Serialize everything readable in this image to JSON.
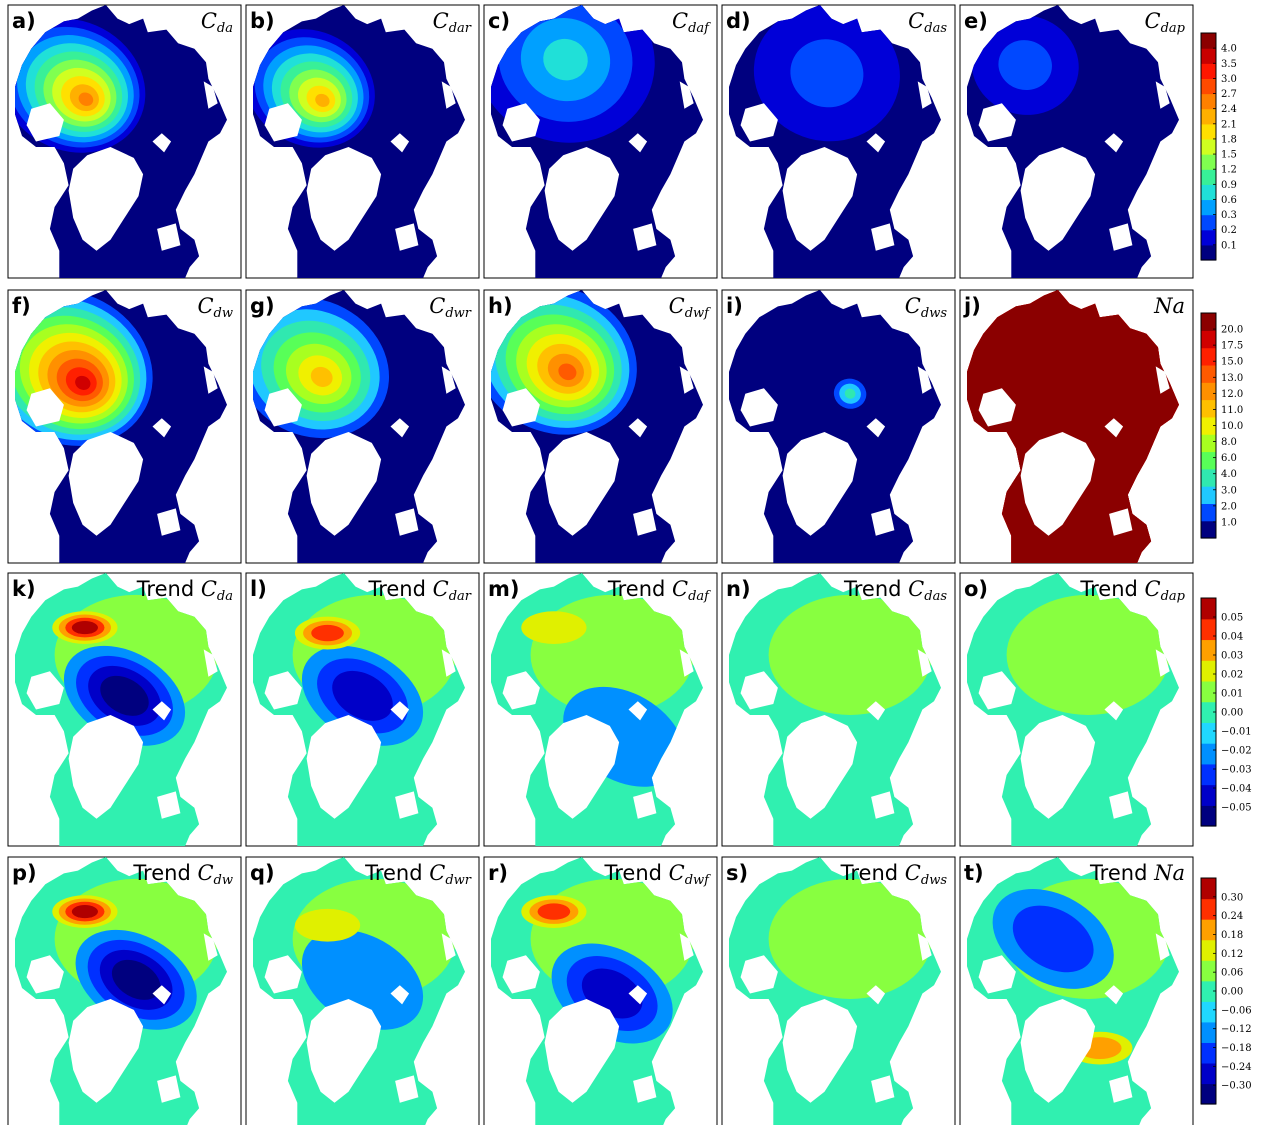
{
  "chart_data": {
    "type": "heatmap",
    "layout": "4 rows x 5 columns of Arctic map panels",
    "map": "Arctic Ocean model grid, polar projection; Greenland and land masks shown white, ocean filled by color",
    "rows": [
      {
        "colorbar": {
          "ticks": [
            "0.1",
            "0.2",
            "0.3",
            "0.6",
            "0.9",
            "1.2",
            "1.5",
            "1.8",
            "2.1",
            "2.4",
            "2.7",
            "3.0",
            "3.5",
            "4.0"
          ],
          "colors": [
            "#00007f",
            "#0000d8",
            "#0048ff",
            "#00a0ff",
            "#20e0d8",
            "#38f098",
            "#80ff50",
            "#d0ff20",
            "#ffe000",
            "#ffb000",
            "#ff8000",
            "#ff4a00",
            "#ff1600",
            "#c80000",
            "#8b0000"
          ]
        },
        "panels": [
          {
            "letter": "a)",
            "prefix": "",
            "symbol": "C",
            "subscript": "da",
            "pattern": {
              "max": 10,
              "center": [
                0.27,
                0.29
              ],
              "spread": 0.43,
              "ridge": true
            }
          },
          {
            "letter": "b)",
            "prefix": "",
            "symbol": "C",
            "subscript": "dar",
            "pattern": {
              "max": 9,
              "center": [
                0.27,
                0.3
              ],
              "spread": 0.38,
              "ridge": true
            }
          },
          {
            "letter": "c)",
            "prefix": "",
            "symbol": "C",
            "subscript": "daf",
            "pattern": {
              "max": 4,
              "center": [
                0.35,
                0.2
              ],
              "spread": 0.55,
              "ridge": false
            }
          },
          {
            "letter": "d)",
            "prefix": "",
            "symbol": "C",
            "subscript": "das",
            "pattern": {
              "max": 2,
              "center": [
                0.45,
                0.25
              ],
              "spread": 0.45,
              "ridge": false
            }
          },
          {
            "letter": "e)",
            "prefix": "",
            "symbol": "C",
            "subscript": "dap",
            "pattern": {
              "max": 2,
              "center": [
                0.28,
                0.22
              ],
              "spread": 0.33,
              "ridge": false
            }
          }
        ]
      },
      {
        "colorbar": {
          "ticks": [
            "1.0",
            "2.0",
            "3.0",
            "4.0",
            "6.0",
            "8.0",
            "10.0",
            "11.0",
            "12.0",
            "13.0",
            "15.0",
            "17.5",
            "20.0"
          ],
          "colors": [
            "#00007f",
            "#0048ff",
            "#20c8ff",
            "#30e8b0",
            "#58ff58",
            "#a8ff20",
            "#f0f000",
            "#ffc000",
            "#ff9000",
            "#ff5a00",
            "#ff2000",
            "#d00000",
            "#8b0000"
          ]
        },
        "panels": [
          {
            "letter": "f)",
            "prefix": "",
            "symbol": "C",
            "subscript": "dw",
            "pattern": {
              "max": 11,
              "center": [
                0.25,
                0.28
              ],
              "spread": 0.5,
              "ridge": true
            }
          },
          {
            "letter": "g)",
            "prefix": "",
            "symbol": "C",
            "subscript": "dwr",
            "pattern": {
              "max": 7,
              "center": [
                0.28,
                0.28
              ],
              "spread": 0.45,
              "ridge": true
            }
          },
          {
            "letter": "h)",
            "prefix": "",
            "symbol": "C",
            "subscript": "dwf",
            "pattern": {
              "max": 9,
              "center": [
                0.3,
                0.25
              ],
              "spread": 0.48,
              "ridge": true
            }
          },
          {
            "letter": "i)",
            "prefix": "",
            "symbol": "C",
            "subscript": "dws",
            "pattern": {
              "max": 3,
              "center": [
                0.55,
                0.38
              ],
              "spread": 0.1,
              "ridge": false
            }
          },
          {
            "letter": "j)",
            "prefix": "",
            "symbol": "Na",
            "subscript": "",
            "pattern": {
              "max": 11,
              "center": [
                0.5,
                0.5
              ],
              "spread": 2.0,
              "ridge": false,
              "floor": 10
            }
          }
        ]
      },
      {
        "colorbar": {
          "ticks": [
            "−0.05",
            "−0.04",
            "−0.03",
            "−0.02",
            "−0.01",
            "0.00",
            "0.01",
            "0.02",
            "0.03",
            "0.04",
            "0.05"
          ],
          "colors": [
            "#00007f",
            "#0000c8",
            "#0030ff",
            "#0090ff",
            "#20d8ff",
            "#30f0b0",
            "#88ff40",
            "#e0f000",
            "#ffa000",
            "#ff3000",
            "#b00000"
          ]
        },
        "panels": [
          {
            "letter": "k)",
            "prefix": "Trend ",
            "symbol": "C",
            "subscript": "da",
            "pattern": {
              "trend": true,
              "pos": [
                0.33,
                0.2
              ],
              "neg": [
                0.5,
                0.45
              ],
              "strength": 4
            }
          },
          {
            "letter": "l)",
            "prefix": "Trend ",
            "symbol": "C",
            "subscript": "dar",
            "pattern": {
              "trend": true,
              "pos": [
                0.35,
                0.22
              ],
              "neg": [
                0.5,
                0.45
              ],
              "strength": 3
            }
          },
          {
            "letter": "m)",
            "prefix": "Trend ",
            "symbol": "C",
            "subscript": "daf",
            "pattern": {
              "trend": true,
              "pos": [
                0.3,
                0.2
              ],
              "neg": [
                0.6,
                0.6
              ],
              "strength": 1
            }
          },
          {
            "letter": "n)",
            "prefix": "Trend ",
            "symbol": "C",
            "subscript": "das",
            "pattern": {
              "trend": true,
              "pos": [
                0.6,
                0.4
              ],
              "neg": [
                0.5,
                0.15
              ],
              "strength": 0
            }
          },
          {
            "letter": "o)",
            "prefix": "Trend ",
            "symbol": "C",
            "subscript": "dap",
            "pattern": {
              "trend": true,
              "pos": [
                0.2,
                0.4
              ],
              "neg": [
                0.5,
                0.3
              ],
              "strength": 0
            }
          }
        ]
      },
      {
        "colorbar": {
          "ticks": [
            "−0.30",
            "−0.24",
            "−0.18",
            "−0.12",
            "−0.06",
            "0.00",
            "0.06",
            "0.12",
            "0.18",
            "0.24",
            "0.30"
          ],
          "colors": [
            "#00007f",
            "#0000c8",
            "#0030ff",
            "#0090ff",
            "#20d8ff",
            "#30f0b0",
            "#88ff40",
            "#e0f000",
            "#ffa000",
            "#ff3000",
            "#b00000"
          ]
        },
        "panels": [
          {
            "letter": "p)",
            "prefix": "Trend ",
            "symbol": "C",
            "subscript": "dw",
            "pattern": {
              "trend": true,
              "pos": [
                0.33,
                0.2
              ],
              "neg": [
                0.55,
                0.45
              ],
              "strength": 4
            }
          },
          {
            "letter": "q)",
            "prefix": "Trend ",
            "symbol": "C",
            "subscript": "dwr",
            "pattern": {
              "trend": true,
              "pos": [
                0.35,
                0.25
              ],
              "neg": [
                0.5,
                0.45
              ],
              "strength": 1
            }
          },
          {
            "letter": "r)",
            "prefix": "Trend ",
            "symbol": "C",
            "subscript": "dwf",
            "pattern": {
              "trend": true,
              "pos": [
                0.3,
                0.2
              ],
              "neg": [
                0.55,
                0.5
              ],
              "strength": 3
            }
          },
          {
            "letter": "s)",
            "prefix": "Trend ",
            "symbol": "C",
            "subscript": "dws",
            "pattern": {
              "trend": true,
              "pos": [
                0.5,
                0.4
              ],
              "neg": [
                0.5,
                0.4
              ],
              "strength": 0
            }
          },
          {
            "letter": "t)",
            "prefix": "Trend ",
            "symbol": "Na",
            "subscript": "",
            "pattern": {
              "trend": true,
              "pos": [
                0.6,
                0.7
              ],
              "neg": [
                0.4,
                0.3
              ],
              "strength": 2
            }
          }
        ]
      }
    ]
  }
}
